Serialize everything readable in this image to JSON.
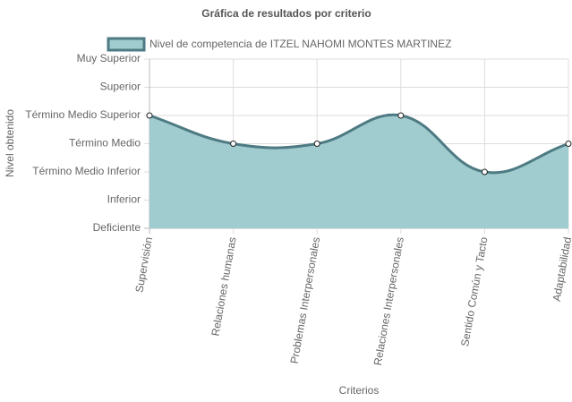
{
  "chart_data": {
    "type": "line",
    "title": "Gráfica de resultados por criterio",
    "x_label": "Criterios",
    "y_label": "Nivel obtenido",
    "categories": [
      "Supervisión",
      "Relaciones humanas",
      "Problemas Interpersonales",
      "Relaciones Interpersonales",
      "Sentido Común y Tacto",
      "Adaptabilidad"
    ],
    "series": [
      {
        "name": "Nivel de competencia de ITZEL NAHOMI MONTES MARTINEZ",
        "color": "#4e7b83",
        "fill": "#a0cbcf",
        "values": [
          4,
          3,
          3,
          4,
          2,
          3
        ]
      }
    ],
    "ylim": [
      0,
      6
    ],
    "yticks": [
      {
        "value": 0,
        "label": "Deficiente"
      },
      {
        "value": 1,
        "label": "Inferior"
      },
      {
        "value": 2,
        "label": "Término Medio Inferior"
      },
      {
        "value": 3,
        "label": "Término Medio"
      },
      {
        "value": 4,
        "label": "Término Medio Superior"
      },
      {
        "value": 5,
        "label": "Superior"
      },
      {
        "value": 6,
        "label": "Muy Superior"
      }
    ],
    "grid": true
  }
}
